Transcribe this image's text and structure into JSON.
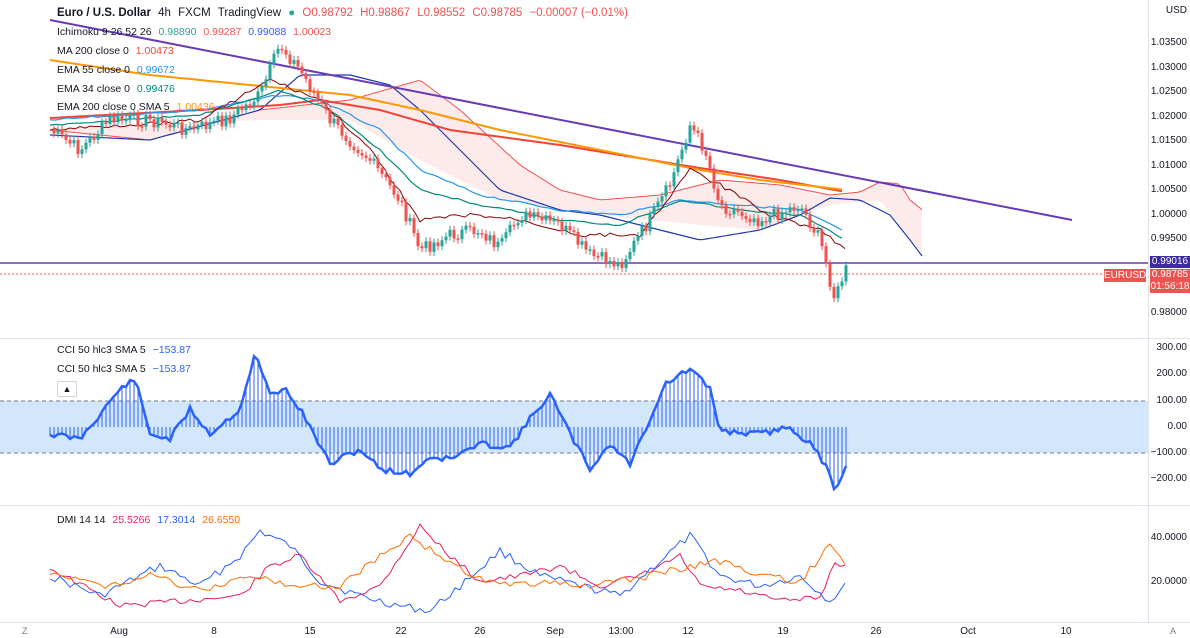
{
  "header": {
    "title": "Euro / U.S. Dollar",
    "interval": "4h",
    "exchange": "FXCM",
    "platform": "TradingView",
    "open": "O0.98792",
    "high": "H0.98867",
    "low": "L0.98552",
    "close": "C0.98785",
    "change": "−0.00007 (−0.01%)"
  },
  "indicators": {
    "ichimoku": {
      "label": "Ichimoku 9 26 52 26",
      "v1": "0.98890",
      "v2": "0.99287",
      "v3": "0.99088",
      "v4": "1.00023"
    },
    "ma200": {
      "label": "MA 200 close 0",
      "value": "1.00473"
    },
    "ema55": {
      "label": "EMA 55 close 0",
      "value": "0.99672"
    },
    "ema34": {
      "label": "EMA 34 close 0",
      "value": "0.99476"
    },
    "ema200": {
      "label": "EMA 200 close 0 SMA 5",
      "value": "1.00436"
    }
  },
  "cci": {
    "legend1": {
      "label": "CCI 50 hlc3 SMA 5",
      "value": "−153.87"
    },
    "legend2": {
      "label": "CCI 50 hlc3 SMA 5",
      "value": "−153.87"
    },
    "collapse_icon": "chevron-up-icon"
  },
  "dmi": {
    "label": "DMI 14 14",
    "plus": "25.5266",
    "minus": "17.3014",
    "adx": "26.6550"
  },
  "price_axis": {
    "currency": "USD",
    "ticks": [
      "1.03500",
      "1.03000",
      "1.02500",
      "1.02000",
      "1.01500",
      "1.01000",
      "1.00500",
      "1.00000",
      "0.99500",
      "0.98000"
    ],
    "line_label": "0.99016",
    "symbol_label": "EURUSD",
    "last_price": "0.98785",
    "countdown": "01:56:18"
  },
  "cci_axis": {
    "ticks": [
      "300.00",
      "200.00",
      "100.00",
      "0.00",
      "−100.00",
      "−200.00"
    ]
  },
  "dmi_axis": {
    "ticks": [
      "40.0000",
      "20.0000"
    ]
  },
  "time_axis": {
    "ticks": [
      "Aug",
      "8",
      "15",
      "22",
      "26",
      "Sep",
      "13:00",
      "12",
      "19",
      "26",
      "Oct",
      "10"
    ]
  },
  "corner_labels": {
    "left": "Z",
    "right": "A"
  },
  "colors": {
    "up": "#26a69a",
    "down": "#ef5350",
    "trendline": "#673ab7",
    "ma200": "#f44336",
    "ema200": "#ff9800",
    "ema55": "#2196f3",
    "ema34": "#00897b",
    "cci": "#2962ff",
    "cci_band": "#c8e1fb",
    "dmi_plus": "#e91e63",
    "dmi_minus": "#2962ff",
    "dmi_adx": "#ff6d00"
  }
}
